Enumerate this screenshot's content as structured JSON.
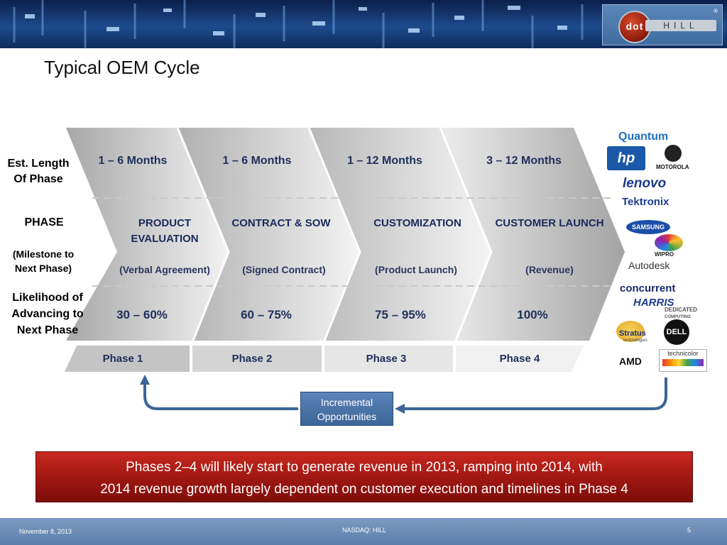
{
  "slide": {
    "title": "Typical OEM Cycle",
    "logo": {
      "dot": "dot",
      "hill": "HILL",
      "reg": "®"
    }
  },
  "row_labels": {
    "est_length": "Est. Length Of Phase",
    "phase": "PHASE",
    "milestone": "(Milestone to Next Phase)",
    "likelihood": "Likelihood of Advancing to Next Phase"
  },
  "phases": [
    {
      "length": "1 – 6 Months",
      "name": "PRODUCT EVALUATION",
      "milestone": "(Verbal Agreement)",
      "likelihood": "30 – 60%",
      "label": "Phase 1"
    },
    {
      "length": "1 – 6 Months",
      "name": "CONTRACT & SOW",
      "milestone": "(Signed Contract)",
      "likelihood": "60 – 75%",
      "label": "Phase 2"
    },
    {
      "length": "1 – 12 Months",
      "name": "CUSTOMIZATION",
      "milestone": "(Product Launch)",
      "likelihood": "75  – 95%",
      "label": "Phase 3"
    },
    {
      "length": "3 – 12 Months",
      "name": "CUSTOMER LAUNCH",
      "milestone": "(Revenue)",
      "likelihood": "100%",
      "label": "Phase 4"
    }
  ],
  "customers": {
    "quantum": "Quantum",
    "hp": "hp",
    "motorola": "MOTOROLA",
    "lenovo": "lenovo",
    "tektronix": "Tektronix",
    "samsung": "SAMSUNG",
    "wipro": "WIPRO",
    "autodesk": "Autodesk",
    "concurrent": "concurrent",
    "harris": "HARRIS",
    "dedicated": "DEDICATED",
    "dedicated_sub": "COMPUTING",
    "stratus": "Stratus",
    "stratus_sub": "technologies",
    "dell": "DELL",
    "amd": "AMD",
    "technicolor": "technicolor"
  },
  "incremental": "Incremental Opportunities",
  "callout": {
    "line1": "Phases 2–4 will likely start to generate revenue in 2013, ramping into 2014, with",
    "line2": "2014 revenue growth largely dependent on customer execution and timelines in Phase 4"
  },
  "footer": {
    "date": "November 8, 2013",
    "ticker": "NASDAQ: HILL",
    "page": "5"
  },
  "colors": {
    "accent_red": "#a3170f",
    "navy_text": "#1f2f5a",
    "banner_blue": "#1d4a8c"
  }
}
